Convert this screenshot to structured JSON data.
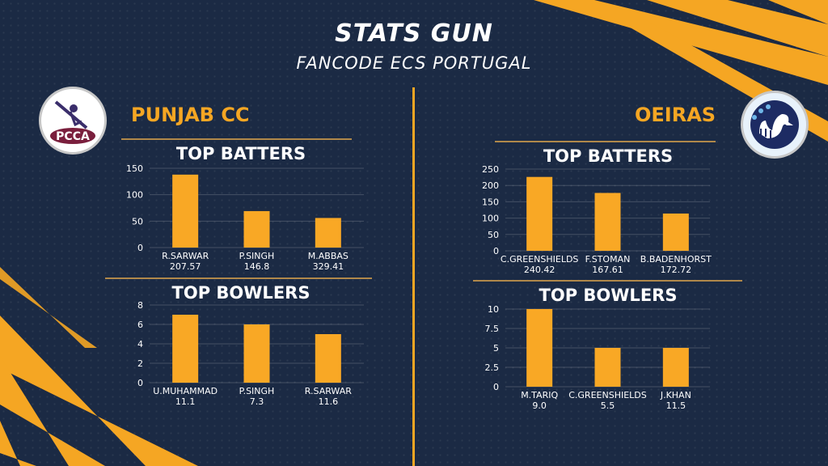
{
  "header": {
    "title": "STATS GUN",
    "subtitle": "FANCODE ECS PORTUGAL"
  },
  "colors": {
    "background": "#1b2a44",
    "accent": "#f5a623",
    "bar": "#f9a825",
    "text": "#ffffff"
  },
  "teams": {
    "left": {
      "name": "PUNJAB CC",
      "logo_text": "PCCA",
      "logo_icon": "cricket-batter-logo"
    },
    "right": {
      "name": "OEIRAS",
      "logo_icon": "swan-logo"
    }
  },
  "chart_data": [
    {
      "id": "punjab-batters",
      "type": "bar",
      "title": "TOP BATTERS",
      "categories": [
        "R.SARWAR",
        "P.SINGH",
        "M.ABBAS"
      ],
      "sublabels": [
        "207.57",
        "146.8",
        "329.41"
      ],
      "values": [
        138,
        69,
        56
      ],
      "ylim": [
        0,
        150
      ],
      "yticks": [
        0,
        50,
        100,
        150
      ],
      "grid": true
    },
    {
      "id": "punjab-bowlers",
      "type": "bar",
      "title": "TOP BOWLERS",
      "categories": [
        "U.MUHAMMAD",
        "P.SINGH",
        "R.SARWAR"
      ],
      "sublabels": [
        "11.1",
        "7.3",
        "11.6"
      ],
      "values": [
        7,
        6,
        5
      ],
      "ylim": [
        0,
        8
      ],
      "yticks": [
        0,
        2,
        4,
        6,
        8
      ],
      "grid": true
    },
    {
      "id": "oeiras-batters",
      "type": "bar",
      "title": "TOP BATTERS",
      "categories": [
        "C.GREENSHIELDS",
        "F.STOMAN",
        "B.BADENHORST"
      ],
      "sublabels": [
        "240.42",
        "167.61",
        "172.72"
      ],
      "values": [
        226,
        177,
        114
      ],
      "ylim": [
        0,
        250
      ],
      "yticks": [
        0,
        50,
        100,
        150,
        200,
        250
      ],
      "grid": true
    },
    {
      "id": "oeiras-bowlers",
      "type": "bar",
      "title": "TOP BOWLERS",
      "categories": [
        "M.TARIQ",
        "C.GREENSHIELDS",
        "J.KHAN"
      ],
      "sublabels": [
        "9.0",
        "5.5",
        "11.5"
      ],
      "values": [
        10,
        5,
        5
      ],
      "ylim": [
        0,
        10
      ],
      "yticks": [
        0,
        2.5,
        5,
        7.5,
        10
      ],
      "grid": true
    }
  ]
}
